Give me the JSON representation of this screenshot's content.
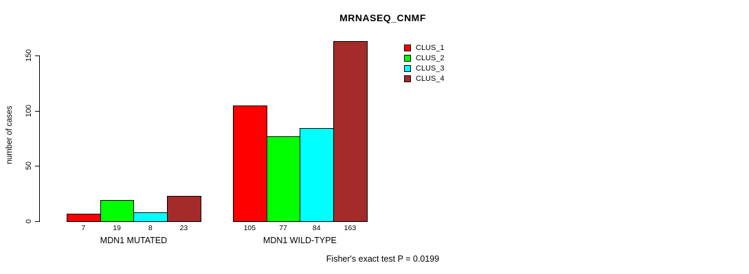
{
  "title": "MRNASEQ_CNMF",
  "footnote": "Fisher's exact test P = 0.0199",
  "chart_data": {
    "type": "bar",
    "title": "MRNASEQ_CNMF",
    "xlabel": "",
    "ylabel": "number of cases",
    "yticks": [
      0,
      50,
      100,
      150
    ],
    "ylim": [
      0,
      163
    ],
    "grid": false,
    "legend_position": "top-right",
    "categories": [
      "MDN1 MUTATED",
      "MDN1 WILD-TYPE"
    ],
    "series": [
      {
        "name": "CLUS_1",
        "color": "#FF0000",
        "values": [
          7,
          105
        ]
      },
      {
        "name": "CLUS_2",
        "color": "#00FF00",
        "values": [
          19,
          77
        ]
      },
      {
        "name": "CLUS_3",
        "color": "#00FFFF",
        "values": [
          8,
          84
        ]
      },
      {
        "name": "CLUS_4",
        "color": "#A52A2A",
        "values": [
          23,
          163
        ]
      }
    ],
    "bar_value_labels": {
      "MDN1 MUTATED": [
        7,
        19,
        8,
        23
      ],
      "MDN1 WILD-TYPE": [
        105,
        77,
        84,
        163
      ]
    },
    "annotation": "Fisher's exact test P = 0.0199"
  }
}
